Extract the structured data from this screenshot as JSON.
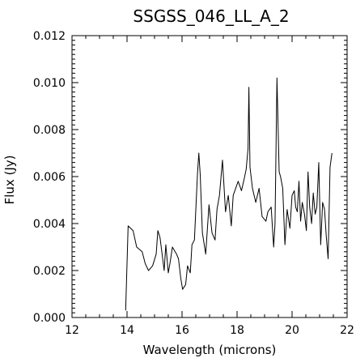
{
  "chart_data": {
    "type": "line",
    "title": "SSGSS_046_LL_A_2",
    "xlabel": "Wavelength (microns)",
    "ylabel": "Flux (Jy)",
    "xlim": [
      12,
      22
    ],
    "ylim": [
      0,
      0.012
    ],
    "x_ticks": [
      "12",
      "14",
      "16",
      "18",
      "20",
      "22"
    ],
    "y_ticks": [
      "0.000",
      "0.002",
      "0.004",
      "0.006",
      "0.008",
      "0.010",
      "0.012"
    ],
    "grid": false,
    "series": [
      {
        "color": "#000000",
        "x": [
          13.95,
          14.04,
          14.22,
          14.35,
          14.55,
          14.66,
          14.78,
          14.93,
          15.06,
          15.12,
          15.2,
          15.35,
          15.41,
          15.5,
          15.56,
          15.65,
          15.8,
          15.87,
          15.95,
          16.02,
          16.13,
          16.2,
          16.3,
          16.36,
          16.45,
          16.56,
          16.61,
          16.66,
          16.74,
          16.86,
          16.98,
          17.09,
          17.2,
          17.27,
          17.36,
          17.47,
          17.58,
          17.68,
          17.79,
          17.86,
          18.04,
          18.16,
          18.24,
          18.33,
          18.4,
          18.43,
          18.47,
          18.56,
          18.68,
          18.8,
          18.91,
          19.05,
          19.12,
          19.24,
          19.33,
          19.38,
          19.45,
          19.53,
          19.58,
          19.66,
          19.74,
          19.82,
          19.92,
          20.0,
          20.08,
          20.13,
          20.19,
          20.25,
          20.31,
          20.37,
          20.45,
          20.52,
          20.58,
          20.64,
          20.71,
          20.77,
          20.84,
          20.9,
          20.97,
          21.04,
          21.11,
          21.18,
          21.24,
          21.31,
          21.38,
          21.45
        ],
        "values": [
          0.0003,
          0.0039,
          0.0037,
          0.003,
          0.0028,
          0.0023,
          0.002,
          0.0022,
          0.0027,
          0.0037,
          0.0034,
          0.002,
          0.0031,
          0.0019,
          0.0023,
          0.003,
          0.0027,
          0.0025,
          0.0017,
          0.0012,
          0.0014,
          0.0022,
          0.0019,
          0.0031,
          0.0033,
          0.0061,
          0.007,
          0.0061,
          0.0036,
          0.0027,
          0.0048,
          0.0036,
          0.0033,
          0.0046,
          0.0052,
          0.0067,
          0.0045,
          0.0052,
          0.0039,
          0.0052,
          0.0058,
          0.0054,
          0.0058,
          0.0063,
          0.0072,
          0.0098,
          0.0064,
          0.0055,
          0.0049,
          0.0055,
          0.0043,
          0.0041,
          0.0045,
          0.0047,
          0.003,
          0.004,
          0.0102,
          0.0062,
          0.006,
          0.0055,
          0.0031,
          0.0046,
          0.0038,
          0.0052,
          0.0054,
          0.0047,
          0.0045,
          0.0058,
          0.0041,
          0.0049,
          0.0044,
          0.0037,
          0.0062,
          0.0047,
          0.004,
          0.0053,
          0.0044,
          0.0047,
          0.0066,
          0.0031,
          0.0049,
          0.0046,
          0.0035,
          0.0025,
          0.0064,
          0.007
        ]
      }
    ]
  }
}
